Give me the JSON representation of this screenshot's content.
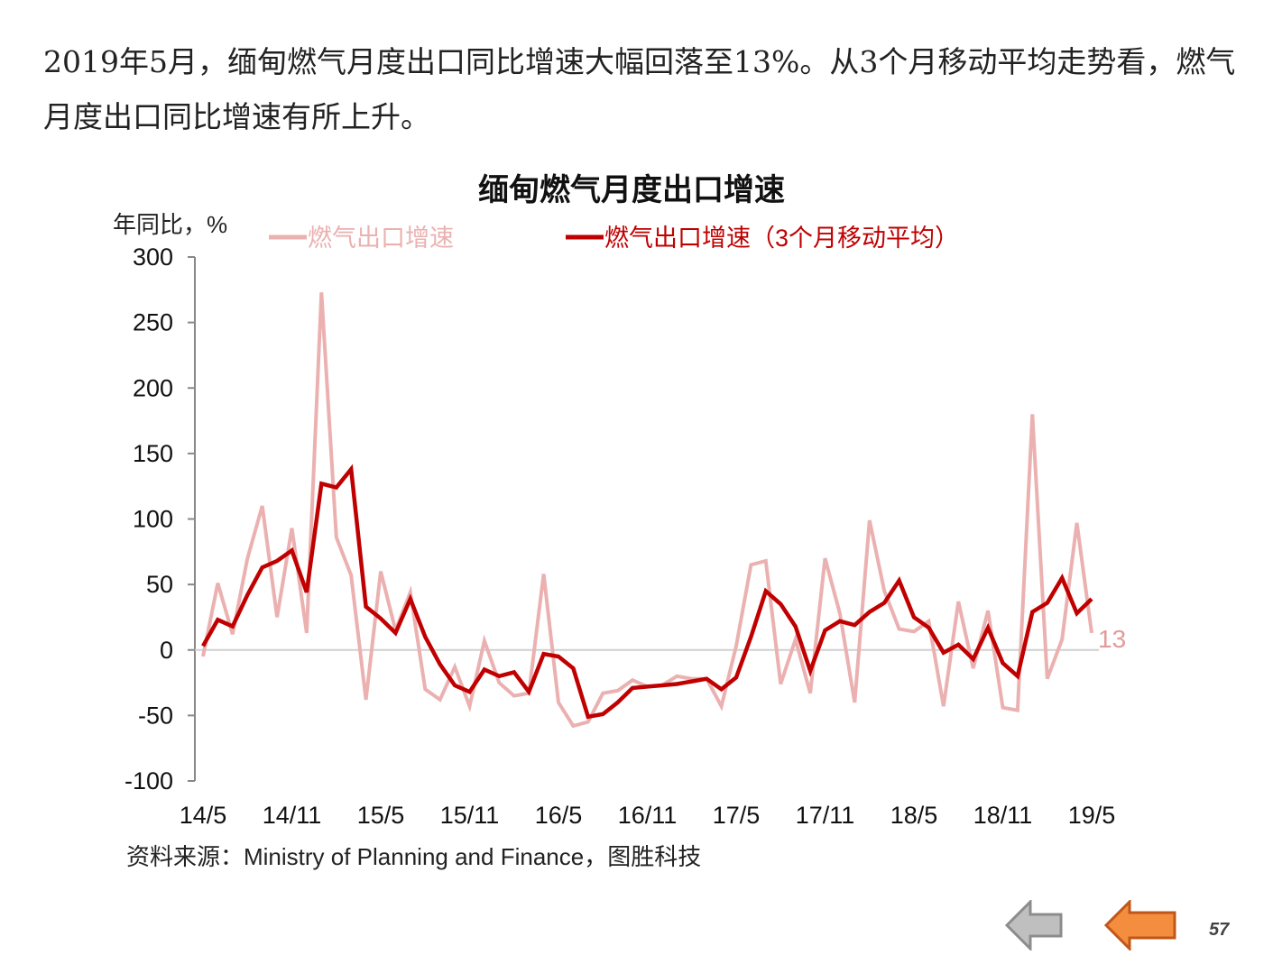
{
  "intro_text": "2019年5月，缅甸燃气月度出口同比增速大幅回落至13%。从3个月移动平均走势看，燃气月度出口同比增速有所上升。",
  "source": "资料来源：Ministry of Planning and Finance，图胜科技",
  "page_number": "57",
  "nav": {
    "prev_icon": "gray-left-arrow-icon",
    "back_icon": "orange-left-arrow-icon"
  },
  "chart_data": {
    "type": "line",
    "title": "缅甸燃气月度出口增速",
    "ylabel": "年同比，%",
    "ylim": [
      -100,
      300
    ],
    "yticks": [
      300,
      250,
      200,
      150,
      100,
      50,
      0,
      -50,
      -100
    ],
    "xticks": [
      "14/5",
      "14/11",
      "15/5",
      "15/11",
      "16/5",
      "16/11",
      "17/5",
      "17/11",
      "18/5",
      "18/11",
      "19/5"
    ],
    "x_start": "2014-05",
    "x_end": "2019-05",
    "legend_position": "top",
    "end_label": "13",
    "series": [
      {
        "name": "燃气出口增速",
        "color": "#ebb1b1",
        "values": [
          -5,
          51,
          12,
          70,
          110,
          25,
          93,
          13,
          273,
          86,
          57,
          -38,
          60,
          15,
          44,
          -30,
          -38,
          -13,
          -43,
          7,
          -25,
          -35,
          -33,
          58,
          -40,
          -58,
          -55,
          -33,
          -31,
          -23,
          -28,
          -27,
          -20,
          -22,
          -22,
          -43,
          3,
          65,
          68,
          -26,
          8,
          -33,
          70,
          28,
          -40,
          99,
          45,
          16,
          14,
          22,
          -43,
          37,
          -14,
          30,
          -44,
          -46,
          180,
          -22,
          8,
          97,
          13
        ]
      },
      {
        "name": "燃气出口增速（3个月移动平均）",
        "color": "#c00000",
        "values": [
          3,
          23,
          18,
          42,
          63,
          68,
          76,
          44,
          127,
          124,
          138,
          33,
          24,
          13,
          39,
          10,
          -11,
          -27,
          -32,
          -15,
          -20,
          -17,
          -32,
          -3,
          -5,
          -14,
          -51,
          -49,
          -40,
          -29,
          -28,
          -27,
          -26,
          -24,
          -22,
          -30,
          -21,
          10,
          45,
          35,
          18,
          -16,
          15,
          22,
          19,
          29,
          36,
          53,
          25,
          17,
          -2,
          4,
          -7,
          17,
          -10,
          -20,
          29,
          36,
          55,
          28,
          39
        ]
      }
    ]
  }
}
